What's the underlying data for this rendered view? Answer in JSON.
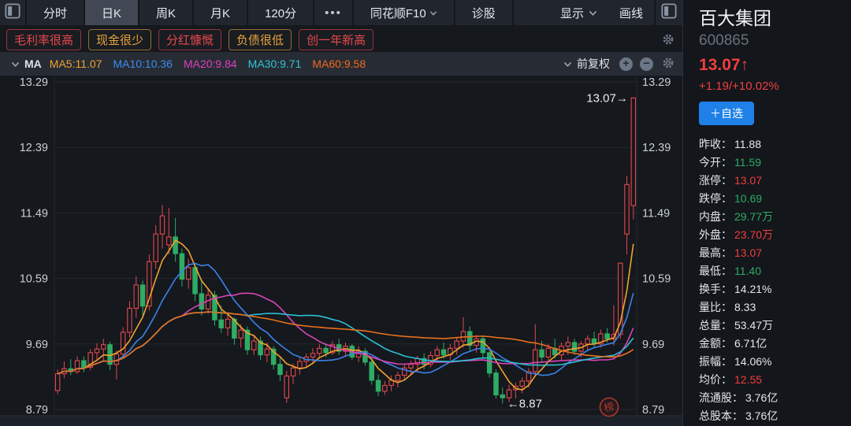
{
  "header": {
    "tabs": [
      {
        "name": "tab-minute",
        "label": "分时",
        "active": false,
        "chevron": false
      },
      {
        "name": "tab-daily-k",
        "label": "日K",
        "active": true,
        "chevron": false
      },
      {
        "name": "tab-weekly-k",
        "label": "周K",
        "active": false,
        "chevron": false
      },
      {
        "name": "tab-monthly-k",
        "label": "月K",
        "active": false,
        "chevron": false
      },
      {
        "name": "tab-120min",
        "label": "120分",
        "active": false,
        "chevron": false
      },
      {
        "name": "tab-more-periods",
        "label": "•••",
        "active": false,
        "chevron": false
      },
      {
        "name": "tab-ths-f10",
        "label": "同花顺F10",
        "active": false,
        "chevron": true
      },
      {
        "name": "tab-diagnose",
        "label": "诊股",
        "active": false,
        "chevron": false
      }
    ],
    "display_label": "显示",
    "draw_label": "画线"
  },
  "tags": [
    {
      "name": "tag-gross-margin-high",
      "label": "毛利率很高",
      "color": "#e5484d"
    },
    {
      "name": "tag-cash-low",
      "label": "现金很少",
      "color": "#e8a33d"
    },
    {
      "name": "tag-dividend-generous",
      "label": "分红慷慨",
      "color": "#e5484d"
    },
    {
      "name": "tag-debt-low",
      "label": "负债很低",
      "color": "#e8a33d"
    },
    {
      "name": "tag-one-year-new-high",
      "label": "创一年新高",
      "color": "#e5484d"
    }
  ],
  "indicator_bar": {
    "name_label": "MA",
    "items": [
      {
        "label": "MA5:11.07",
        "color": "#f0a32f"
      },
      {
        "label": "MA10:10.36",
        "color": "#3c8cf0"
      },
      {
        "label": "MA20:9.84",
        "color": "#e040c0"
      },
      {
        "label": "MA30:9.71",
        "color": "#2cc6d8"
      },
      {
        "label": "MA60:9.58",
        "color": "#f2691c"
      }
    ],
    "adjust_label": "前复权"
  },
  "chart_data": {
    "type": "candlestick",
    "y_ticks": [
      13.29,
      12.39,
      11.49,
      10.59,
      9.69,
      8.79
    ],
    "up_color": "#e5484d",
    "down_color": "#2eac64",
    "grid": true,
    "annotations": {
      "high_label": "13.07→",
      "low_label": "←8.87",
      "stamp": "榜"
    },
    "ma_lines": [
      {
        "period": 5,
        "color": "#f0a32f"
      },
      {
        "period": 10,
        "color": "#3b82e8"
      },
      {
        "period": 20,
        "color": "#d943b8"
      },
      {
        "period": 30,
        "color": "#2bbfd4"
      },
      {
        "period": 60,
        "color": "#e8701e"
      }
    ],
    "candles": [
      [
        9.05,
        9.34,
        9.0,
        9.28
      ],
      [
        9.28,
        9.45,
        9.22,
        9.35
      ],
      [
        9.35,
        9.48,
        9.26,
        9.31
      ],
      [
        9.31,
        9.52,
        9.28,
        9.46
      ],
      [
        9.46,
        9.52,
        9.3,
        9.37
      ],
      [
        9.37,
        9.62,
        9.33,
        9.57
      ],
      [
        9.57,
        9.7,
        9.48,
        9.62
      ],
      [
        9.62,
        9.76,
        9.45,
        9.68
      ],
      [
        9.68,
        9.72,
        9.33,
        9.41
      ],
      [
        9.41,
        9.6,
        9.2,
        9.55
      ],
      [
        9.55,
        9.92,
        9.5,
        9.85
      ],
      [
        9.85,
        10.28,
        9.78,
        10.18
      ],
      [
        10.18,
        10.62,
        10.05,
        10.5
      ],
      [
        10.5,
        10.56,
        10.08,
        10.21
      ],
      [
        10.21,
        10.92,
        10.15,
        10.82
      ],
      [
        10.82,
        11.32,
        10.72,
        11.2
      ],
      [
        11.2,
        11.6,
        11.0,
        11.45
      ],
      [
        11.05,
        11.56,
        10.92,
        11.16
      ],
      [
        11.16,
        11.42,
        10.82,
        10.93
      ],
      [
        10.93,
        11.0,
        10.48,
        10.58
      ],
      [
        10.58,
        10.86,
        10.45,
        10.74
      ],
      [
        10.74,
        10.8,
        10.28,
        10.38
      ],
      [
        10.38,
        10.55,
        10.08,
        10.17
      ],
      [
        10.17,
        10.46,
        10.1,
        10.36
      ],
      [
        10.36,
        10.42,
        9.94,
        10.02
      ],
      [
        10.02,
        10.22,
        9.84,
        9.91
      ],
      [
        9.91,
        10.12,
        9.8,
        10.03
      ],
      [
        10.03,
        10.06,
        9.68,
        9.77
      ],
      [
        9.77,
        9.96,
        9.64,
        9.88
      ],
      [
        9.88,
        9.93,
        9.54,
        9.61
      ],
      [
        9.61,
        9.82,
        9.54,
        9.73
      ],
      [
        9.73,
        9.79,
        9.47,
        9.54
      ],
      [
        9.54,
        9.71,
        9.44,
        9.62
      ],
      [
        9.62,
        9.66,
        9.34,
        9.41
      ],
      [
        9.41,
        9.5,
        9.18,
        9.27
      ],
      [
        8.95,
        9.32,
        8.88,
        9.25
      ],
      [
        9.25,
        9.42,
        9.14,
        9.36
      ],
      [
        9.36,
        9.5,
        9.27,
        9.45
      ],
      [
        9.45,
        9.56,
        9.37,
        9.51
      ],
      [
        9.51,
        9.63,
        9.41,
        9.56
      ],
      [
        9.56,
        9.69,
        9.49,
        9.63
      ],
      [
        9.63,
        9.7,
        9.51,
        9.57
      ],
      [
        9.57,
        9.73,
        9.54,
        9.68
      ],
      [
        9.68,
        9.76,
        9.54,
        9.59
      ],
      [
        9.59,
        9.71,
        9.51,
        9.66
      ],
      [
        9.66,
        9.69,
        9.47,
        9.51
      ],
      [
        9.51,
        9.66,
        9.44,
        9.59
      ],
      [
        9.59,
        9.63,
        9.39,
        9.44
      ],
      [
        9.44,
        9.5,
        9.13,
        9.19
      ],
      [
        9.19,
        9.27,
        8.97,
        9.04
      ],
      [
        9.04,
        9.18,
        8.99,
        9.12
      ],
      [
        9.12,
        9.26,
        9.04,
        9.19
      ],
      [
        9.19,
        9.31,
        9.09,
        9.26
      ],
      [
        9.26,
        9.41,
        9.19,
        9.36
      ],
      [
        9.36,
        9.46,
        9.27,
        9.41
      ],
      [
        9.41,
        9.53,
        9.31,
        9.49
      ],
      [
        9.49,
        9.56,
        9.34,
        9.41
      ],
      [
        9.41,
        9.59,
        9.37,
        9.53
      ],
      [
        9.53,
        9.66,
        9.44,
        9.61
      ],
      [
        9.61,
        9.71,
        9.49,
        9.54
      ],
      [
        9.54,
        9.69,
        9.47,
        9.63
      ],
      [
        9.63,
        9.79,
        9.54,
        9.73
      ],
      [
        9.73,
        10.06,
        9.64,
        9.86
      ],
      [
        9.86,
        9.93,
        9.59,
        9.67
      ],
      [
        9.67,
        9.81,
        9.57,
        9.76
      ],
      [
        9.76,
        9.81,
        9.49,
        9.57
      ],
      [
        9.57,
        9.6,
        9.23,
        9.29
      ],
      [
        9.29,
        9.34,
        8.94,
        8.99
      ],
      [
        8.99,
        9.09,
        8.87,
        8.95
      ],
      [
        8.95,
        9.13,
        8.89,
        9.06
      ],
      [
        9.06,
        9.16,
        8.94,
        9.11
      ],
      [
        9.11,
        9.23,
        9.01,
        9.18
      ],
      [
        9.18,
        9.36,
        9.09,
        9.31
      ],
      [
        9.31,
        9.96,
        9.24,
        9.61
      ],
      [
        9.61,
        9.73,
        9.44,
        9.51
      ],
      [
        9.51,
        9.69,
        9.44,
        9.63
      ],
      [
        9.63,
        9.76,
        9.49,
        9.54
      ],
      [
        9.54,
        9.71,
        9.47,
        9.66
      ],
      [
        9.66,
        9.79,
        9.54,
        9.71
      ],
      [
        9.71,
        9.76,
        9.54,
        9.59
      ],
      [
        9.59,
        9.73,
        9.51,
        9.69
      ],
      [
        9.69,
        9.81,
        9.59,
        9.76
      ],
      [
        9.76,
        9.86,
        9.64,
        9.69
      ],
      [
        9.69,
        9.89,
        9.64,
        9.83
      ],
      [
        9.83,
        9.91,
        9.71,
        9.76
      ],
      [
        9.76,
        10.22,
        9.67,
        9.82
      ],
      [
        9.82,
        10.8,
        9.76,
        10.8
      ],
      [
        11.2,
        12.0,
        10.92,
        11.88
      ],
      [
        11.59,
        13.07,
        11.4,
        13.07
      ]
    ]
  },
  "quote_panel": {
    "stock_name": "百大集团",
    "stock_code": "600865",
    "price": "13.07↑",
    "change": "+1.19/+10.02%",
    "add_watchlist_label": "＋自选",
    "stats": [
      {
        "label": "昨收",
        "value": "11.88",
        "color": "white"
      },
      {
        "label": "今开",
        "value": "11.59",
        "color": "green"
      },
      {
        "label": "涨停",
        "value": "13.07",
        "color": "red"
      },
      {
        "label": "跌停",
        "value": "10.69",
        "color": "green"
      },
      {
        "label": "内盘",
        "value": "29.77万",
        "color": "green"
      },
      {
        "label": "外盘",
        "value": "23.70万",
        "color": "red"
      },
      {
        "label": "最高",
        "value": "13.07",
        "color": "red"
      },
      {
        "label": "最低",
        "value": "11.40",
        "color": "green"
      },
      {
        "label": "换手",
        "value": "14.21%",
        "color": "white"
      },
      {
        "label": "量比",
        "value": "8.33",
        "color": "white"
      },
      {
        "label": "总量",
        "value": "53.47万",
        "color": "white"
      },
      {
        "label": "金额",
        "value": "6.71亿",
        "color": "white"
      },
      {
        "label": "振幅",
        "value": "14.06%",
        "color": "white"
      },
      {
        "label": "均价",
        "value": "12.55",
        "color": "red"
      },
      {
        "label": "流通股",
        "value": "3.76亿",
        "color": "white"
      },
      {
        "label": "总股本",
        "value": "3.76亿",
        "color": "white"
      }
    ]
  }
}
